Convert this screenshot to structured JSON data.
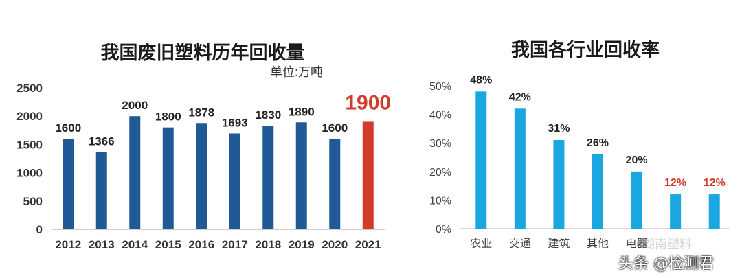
{
  "chart_data": [
    {
      "type": "bar",
      "title": "我国废旧塑料历年回收量",
      "subtitle": "单位:万吨",
      "categories": [
        "2012",
        "2013",
        "2014",
        "2015",
        "2016",
        "2017",
        "2018",
        "2019",
        "2020",
        "2021"
      ],
      "values": [
        1600,
        1366,
        2000,
        1800,
        1878,
        1693,
        1830,
        1890,
        1600,
        1900
      ],
      "ylim": [
        0,
        2500
      ],
      "yticks": [
        0,
        500,
        1000,
        1500,
        2000,
        2500
      ],
      "colors": {
        "bar": "#1f5a96",
        "highlight": "#d43a2c",
        "highlight_label": "#d43a2c",
        "label": "#222222"
      },
      "highlight_index": 9,
      "grid": false
    },
    {
      "type": "bar",
      "title": "我国各行业回收率",
      "categories": [
        "农业",
        "交通",
        "建筑",
        "其他",
        "电器",
        "",
        ""
      ],
      "values": [
        48,
        42,
        31,
        26,
        20,
        12,
        12
      ],
      "data_labels": [
        "48%",
        "42%",
        "31%",
        "26%",
        "20%",
        "12%",
        "12%"
      ],
      "ylim": [
        0,
        50
      ],
      "yticks": [
        "0%",
        "10%",
        "20%",
        "30%",
        "40%",
        "50%"
      ],
      "ytick_values": [
        0,
        10,
        20,
        30,
        40,
        50
      ],
      "colors": {
        "bar": "#1aa7e0",
        "label": "#222222",
        "highlight_label": "#d43a2c"
      },
      "highlight_label_indices": [
        5,
        6
      ],
      "grid": false
    }
  ],
  "watermark": {
    "text": "头条 @检测君",
    "text2": "湖南塑料"
  }
}
